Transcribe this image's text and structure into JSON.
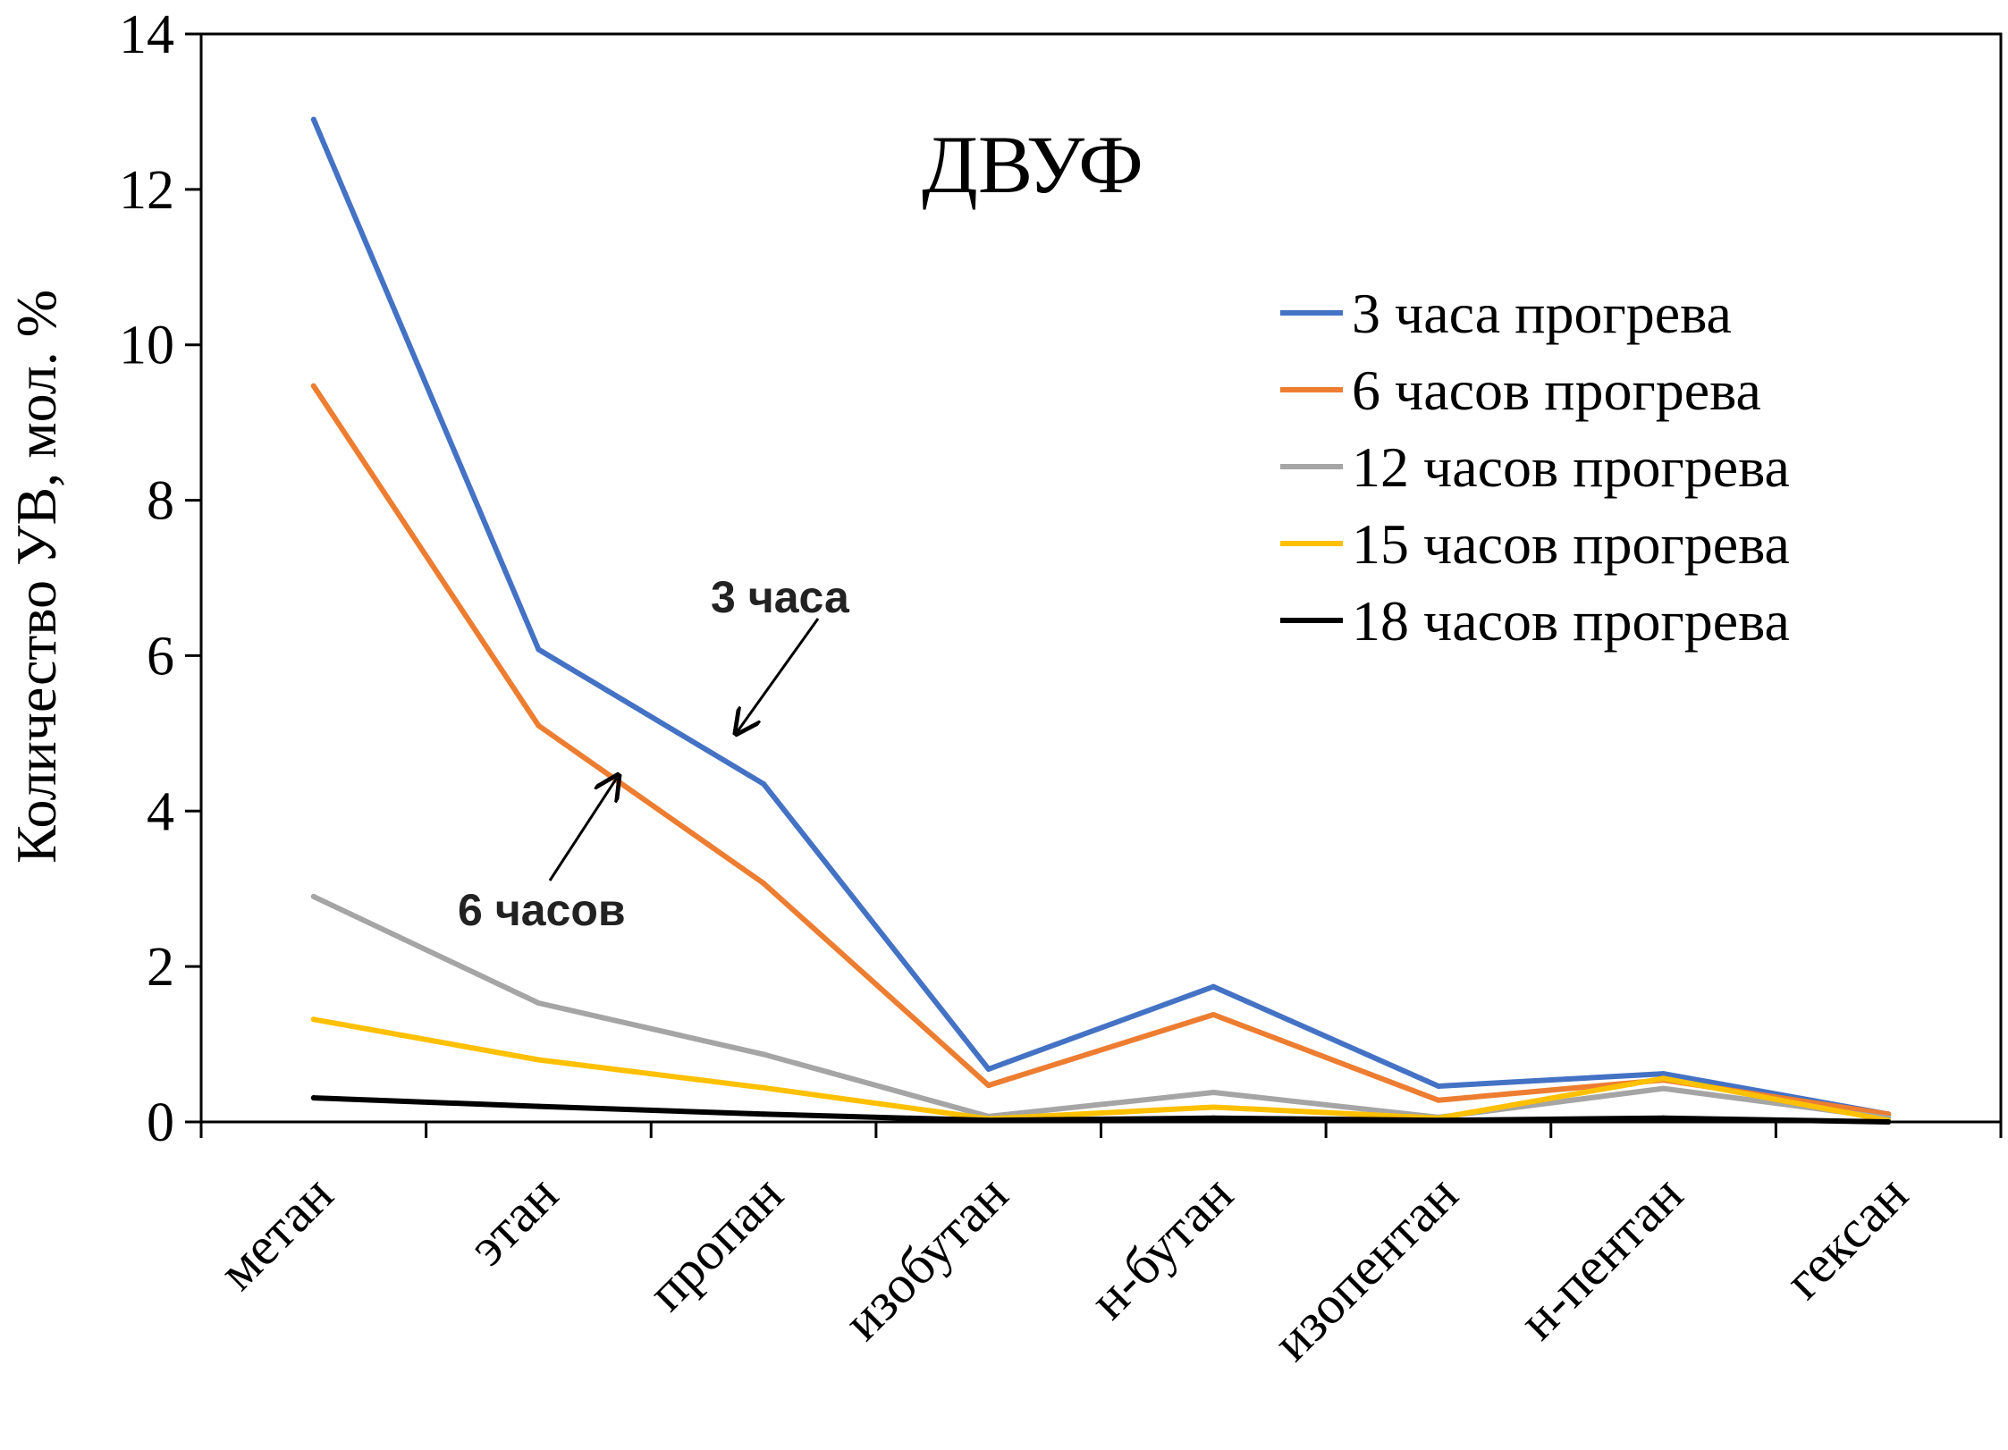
{
  "chart_data": {
    "type": "line",
    "title": "ДВУФ",
    "xlabel": "",
    "ylabel": "Количество УВ, мол. %",
    "categories": [
      "метан",
      "этан",
      "пропан",
      "изобутан",
      "н-бутан",
      "изопентан",
      "н-пентан",
      "гексан"
    ],
    "ylim": [
      0,
      14
    ],
    "yticks": [
      "0",
      "2",
      "4",
      "6",
      "8",
      "10",
      "12",
      "14"
    ],
    "grid": false,
    "legend_position": "right",
    "series": [
      {
        "name": "3 часа прогрева",
        "color": "#4472C4",
        "values": [
          12.9,
          6.08,
          4.35,
          0.68,
          1.74,
          0.46,
          0.62,
          0.1
        ]
      },
      {
        "name": "6 часов прогрева",
        "color": "#ED7D31",
        "values": [
          9.47,
          5.1,
          3.07,
          0.47,
          1.38,
          0.28,
          0.54,
          0.1
        ]
      },
      {
        "name": "12 часов прогрева",
        "color": "#A5A5A5",
        "values": [
          2.9,
          1.53,
          0.87,
          0.07,
          0.38,
          0.06,
          0.43,
          0.05
        ]
      },
      {
        "name": "15 часов прогрева",
        "color": "#FFC000",
        "values": [
          1.32,
          0.8,
          0.44,
          0.04,
          0.19,
          0.05,
          0.56,
          0.02
        ]
      },
      {
        "name": "18 часов прогрева",
        "color": "#000000",
        "values": [
          0.31,
          0.2,
          0.1,
          0.02,
          0.05,
          0.02,
          0.05,
          0.0
        ]
      }
    ],
    "annotations": [
      {
        "text": "3 часа",
        "points_to": {
          "category": "пропан",
          "series": "3 часа прогрева"
        }
      },
      {
        "text": "6 часов",
        "points_to": {
          "category": "этан",
          "series": "6 часов прогрева"
        }
      }
    ]
  }
}
